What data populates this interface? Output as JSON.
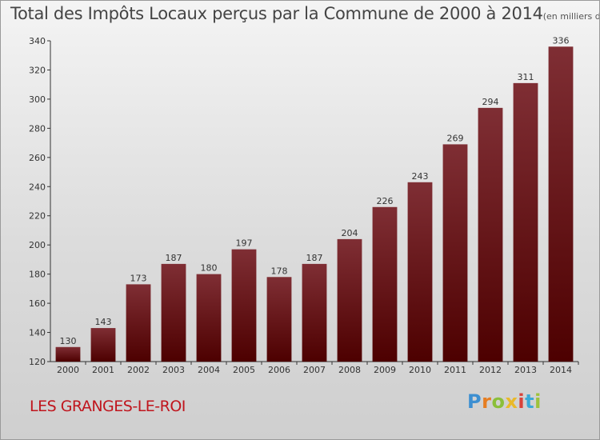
{
  "title": "Total des Impôts Locaux perçus par la Commune de 2000 à 2014",
  "unit": "(en milliers d'€)",
  "commune": "LES GRANGES-LE-ROI",
  "logo": "Proxiti",
  "colors": {
    "bar_top": "#7f2e34",
    "bar_bottom": "#4d0000",
    "commune_text": "#c0151d"
  },
  "chart_data": {
    "type": "bar",
    "title": "Total des Impôts Locaux perçus par la Commune de 2000 à 2014",
    "xlabel": "",
    "ylabel": "",
    "categories": [
      "2000",
      "2001",
      "2002",
      "2003",
      "2004",
      "2005",
      "2006",
      "2007",
      "2008",
      "2009",
      "2010",
      "2011",
      "2012",
      "2013",
      "2014"
    ],
    "values": [
      130,
      143,
      173,
      187,
      180,
      197,
      178,
      187,
      204,
      226,
      243,
      269,
      294,
      311,
      336
    ],
    "ylim": [
      120,
      340
    ],
    "yticks": [
      120,
      140,
      160,
      180,
      200,
      220,
      240,
      260,
      280,
      300,
      320,
      340
    ],
    "grid": false,
    "legend": "none"
  }
}
